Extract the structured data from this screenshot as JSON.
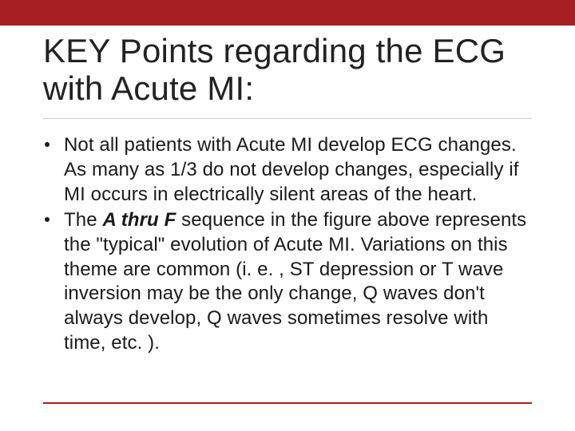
{
  "colors": {
    "accent": "#a41e22",
    "title": "#222222",
    "body": "#1a1a1a",
    "divider_light": "#cccccc",
    "background": "#ffffff"
  },
  "title": "KEY Points regarding the ECG with Acute MI:",
  "bullets": [
    {
      "pre": "Not all patients with Acute MI develop ECG changes.  As many as 1/3 do not develop changes, especially if MI occurs in electrically silent areas of the heart.",
      "emph": "",
      "post": ""
    },
    {
      "pre": "The ",
      "emph": "A thru F",
      "post": " sequence in the figure above represents the \"typical\" evolution of Acute MI. Variations on this theme are common (i. e. , ST depression or T wave inversion may be the only change, Q waves don't always develop, Q waves sometimes resolve with time, etc. )."
    }
  ]
}
